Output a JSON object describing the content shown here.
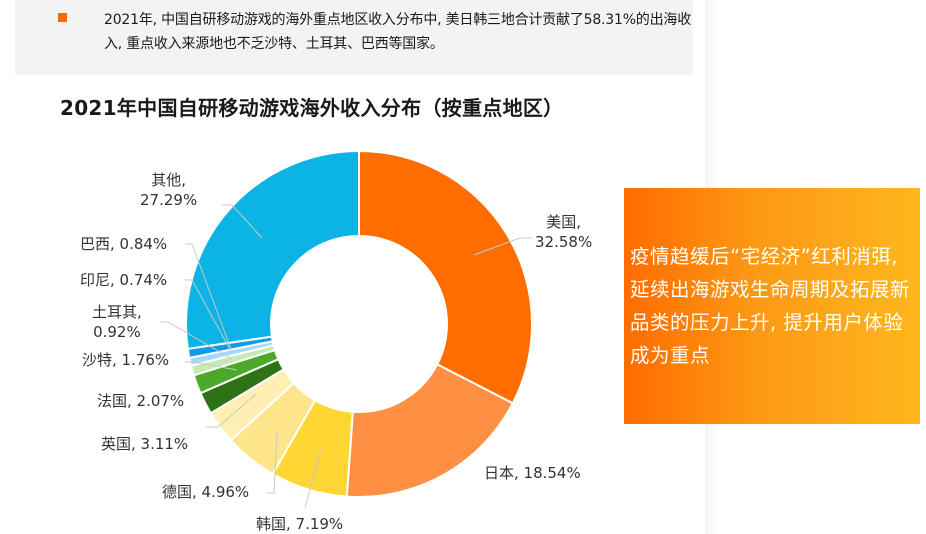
{
  "summary": {
    "bullet_color": "#ff6a00",
    "text": "2021年, 中国自研移动游戏的海外重点地区收入分布中, 美日韩三地合计贡献了58.31%的出海收入, 重点收入来源地也不乏沙特、土耳其、巴西等国家。"
  },
  "callout": {
    "text": "疫情趋缓后“宅经济”红利消弭, 延续出海游戏生命周期及拓展新品类的压力上升, 提升用户体验成为重点",
    "gradient_start": "#ff6c00",
    "gradient_end": "#feb71e"
  },
  "chart_data": {
    "type": "pie",
    "variant": "donut",
    "title": "2021年中国自研移动游戏海外收入分布（按重点地区）",
    "unit": "%",
    "categories": [
      "美国",
      "日本",
      "韩国",
      "德国",
      "英国",
      "法国",
      "沙特",
      "土耳其",
      "印尼",
      "巴西",
      "其他"
    ],
    "values": [
      32.58,
      18.54,
      7.19,
      4.96,
      3.11,
      2.07,
      1.76,
      0.92,
      0.74,
      0.84,
      27.29
    ],
    "colors": [
      "#ff6d00",
      "#ff9043",
      "#ffd633",
      "#ffe58a",
      "#ffefb3",
      "#2e7217",
      "#4ca828",
      "#c5ebb5",
      "#a6d8f7",
      "#0f9bea",
      "#0bb4e4"
    ],
    "labels": [
      "美国, 32.58%",
      "日本, 18.54%",
      "韩国, 7.19%",
      "德国, 4.96%",
      "英国, 3.11%",
      "法国, 2.07%",
      "沙特, 1.76%",
      "土耳其, 0.92%",
      "印尼, 0.74%",
      "巴西, 0.84%",
      "其他, 27.29%"
    ],
    "label_lines": {
      "美国": [
        "美国,",
        "32.58%"
      ],
      "土耳其": [
        "土耳其,",
        "0.92%"
      ],
      "其他": [
        "其他,",
        "27.29%"
      ]
    },
    "start_angle_deg": 0,
    "direction": "clockwise",
    "legend": "none (direct labels with leader lines)"
  }
}
